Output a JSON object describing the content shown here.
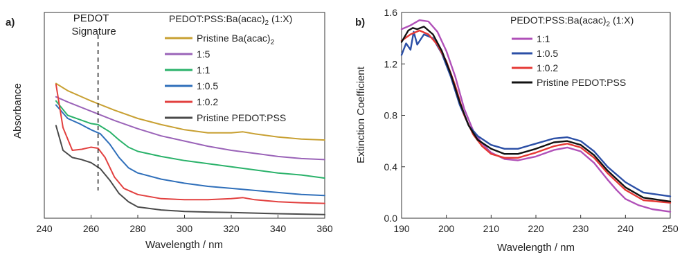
{
  "chart_data": [
    {
      "panel_label": "a)",
      "type": "line",
      "xlabel": "Wavelength / nm",
      "ylabel": "Absorbance",
      "xlim": [
        240,
        360
      ],
      "ylim": [
        0,
        10
      ],
      "x_ticks": [
        "240",
        "260",
        "280",
        "300",
        "320",
        "340",
        "360"
      ],
      "y_ticks_shown": false,
      "legend_title": "PEDOT:PSS:Ba(acac)",
      "legend_title_sub": "2",
      "legend_title_suffix": " (1:X)",
      "legend_position": "top-right",
      "annotation": {
        "line1": "PEDOT",
        "line2": "Signature",
        "x": 263
      },
      "series": [
        {
          "name": "Pristine Ba(acac)",
          "name_sub": "2",
          "color": "#c8a032",
          "x": [
            245,
            250,
            260,
            270,
            280,
            290,
            300,
            310,
            320,
            325,
            330,
            340,
            350,
            360
          ],
          "y": [
            6.55,
            6.2,
            5.7,
            5.25,
            4.85,
            4.55,
            4.3,
            4.15,
            4.15,
            4.2,
            4.1,
            3.95,
            3.85,
            3.8
          ]
        },
        {
          "name": "1:5",
          "color": "#9a63b8",
          "x": [
            245,
            250,
            260,
            270,
            280,
            290,
            300,
            310,
            320,
            330,
            340,
            350,
            360
          ],
          "y": [
            5.9,
            5.65,
            5.2,
            4.75,
            4.35,
            4.0,
            3.75,
            3.5,
            3.3,
            3.15,
            3.0,
            2.9,
            2.85
          ]
        },
        {
          "name": "1:1",
          "color": "#2ab26a",
          "x": [
            245,
            250,
            255,
            260,
            263,
            268,
            272,
            276,
            280,
            290,
            300,
            310,
            320,
            330,
            340,
            350,
            360
          ],
          "y": [
            5.7,
            5.0,
            4.8,
            4.6,
            4.55,
            4.2,
            3.8,
            3.45,
            3.25,
            3.0,
            2.8,
            2.65,
            2.5,
            2.35,
            2.2,
            2.1,
            1.95
          ]
        },
        {
          "name": "1:0.5",
          "color": "#2f6fba",
          "x": [
            245,
            250,
            255,
            260,
            264,
            268,
            272,
            276,
            280,
            290,
            300,
            310,
            320,
            330,
            340,
            350,
            360
          ],
          "y": [
            5.5,
            4.85,
            4.6,
            4.3,
            4.1,
            3.6,
            2.95,
            2.45,
            2.2,
            1.9,
            1.7,
            1.55,
            1.45,
            1.35,
            1.25,
            1.15,
            1.1
          ]
        },
        {
          "name": "1:0.2",
          "color": "#e2403f",
          "x": [
            245,
            248,
            252,
            256,
            260,
            263,
            266,
            270,
            274,
            280,
            290,
            300,
            310,
            320,
            325,
            330,
            340,
            350,
            360
          ],
          "y": [
            6.5,
            4.4,
            3.3,
            3.35,
            3.45,
            3.4,
            2.95,
            2.0,
            1.45,
            1.15,
            0.95,
            0.9,
            0.9,
            0.95,
            1.0,
            0.9,
            0.8,
            0.75,
            0.72
          ]
        },
        {
          "name": "Pristine PEDOT:PSS",
          "color": "#4a4a4a",
          "x": [
            245,
            248,
            252,
            256,
            260,
            264,
            268,
            272,
            276,
            280,
            290,
            300,
            310,
            320,
            330,
            340,
            350,
            360
          ],
          "y": [
            4.5,
            3.3,
            2.95,
            2.85,
            2.7,
            2.4,
            1.85,
            1.2,
            0.8,
            0.55,
            0.4,
            0.33,
            0.3,
            0.28,
            0.25,
            0.22,
            0.2,
            0.18
          ]
        }
      ]
    },
    {
      "panel_label": "b)",
      "type": "line",
      "xlabel": "Wavelength / nm",
      "ylabel": "Extinction Coefficient",
      "xlim": [
        190,
        250
      ],
      "ylim": [
        0,
        1.6
      ],
      "x_ticks": [
        "190",
        "200",
        "210",
        "220",
        "230",
        "240",
        "250"
      ],
      "y_ticks": [
        "0.0",
        "0.4",
        "0.8",
        "1.2",
        "1.6"
      ],
      "legend_title": "PEDOT:PSS:Ba(acac)",
      "legend_title_sub": "2",
      "legend_title_suffix": " (1:X)",
      "legend_position": "top-right",
      "series": [
        {
          "name": "1:1",
          "color": "#b050b8",
          "x": [
            190,
            192,
            194,
            196,
            198,
            200,
            202,
            204,
            206,
            208,
            210,
            213,
            216,
            220,
            224,
            227,
            230,
            233,
            236,
            238,
            240,
            243,
            246,
            250
          ],
          "y": [
            1.47,
            1.5,
            1.54,
            1.53,
            1.45,
            1.3,
            1.1,
            0.85,
            0.68,
            0.58,
            0.51,
            0.46,
            0.45,
            0.48,
            0.53,
            0.55,
            0.52,
            0.43,
            0.3,
            0.22,
            0.15,
            0.1,
            0.07,
            0.05
          ]
        },
        {
          "name": "1:0.5",
          "color": "#2b4fa6",
          "x": [
            190,
            191,
            192,
            192.7,
            193.5,
            195,
            197,
            199,
            201,
            203,
            205,
            207,
            210,
            213,
            216,
            220,
            224,
            227,
            230,
            233,
            236,
            240,
            244,
            250
          ],
          "y": [
            1.27,
            1.36,
            1.31,
            1.45,
            1.35,
            1.43,
            1.4,
            1.28,
            1.1,
            0.88,
            0.72,
            0.64,
            0.57,
            0.54,
            0.54,
            0.58,
            0.62,
            0.63,
            0.6,
            0.52,
            0.4,
            0.28,
            0.2,
            0.17
          ]
        },
        {
          "name": "1:0.2",
          "color": "#e53935",
          "x": [
            190,
            192,
            194,
            196,
            198,
            200,
            202,
            204,
            206,
            208,
            210,
            213,
            216,
            220,
            224,
            227,
            230,
            233,
            236,
            240,
            244,
            250
          ],
          "y": [
            1.38,
            1.43,
            1.46,
            1.43,
            1.35,
            1.22,
            1.03,
            0.8,
            0.65,
            0.56,
            0.5,
            0.47,
            0.47,
            0.51,
            0.56,
            0.58,
            0.55,
            0.47,
            0.35,
            0.22,
            0.14,
            0.12
          ]
        },
        {
          "name": "Pristine PEDOT:PSS",
          "color": "#111111",
          "x": [
            190,
            191.5,
            192.5,
            193.5,
            195,
            197,
            199,
            201,
            203,
            205,
            207,
            210,
            213,
            216,
            220,
            224,
            227,
            230,
            233,
            236,
            240,
            244,
            250
          ],
          "y": [
            1.37,
            1.46,
            1.48,
            1.47,
            1.49,
            1.43,
            1.3,
            1.12,
            0.9,
            0.72,
            0.61,
            0.54,
            0.5,
            0.5,
            0.54,
            0.59,
            0.6,
            0.57,
            0.49,
            0.37,
            0.24,
            0.16,
            0.13
          ]
        }
      ]
    }
  ]
}
